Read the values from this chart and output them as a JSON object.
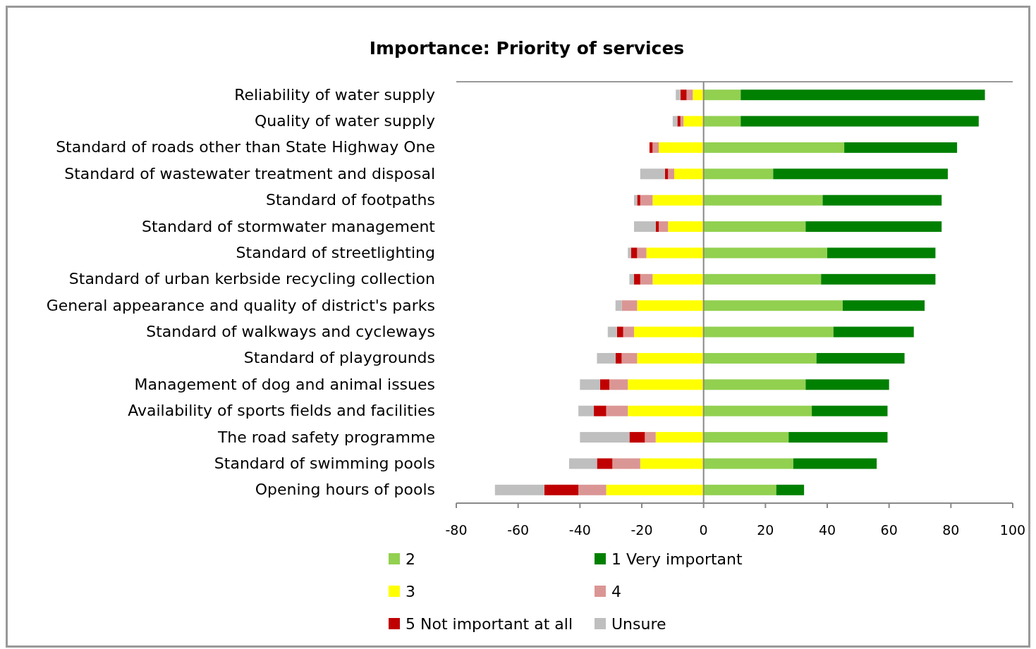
{
  "chart_data": {
    "type": "bar",
    "title": "Importance: Priority of services",
    "orientation": "horizontal",
    "stacked": true,
    "categories": [
      "Reliability of water supply",
      "Quality of water supply",
      "Standard of roads other than State Highway One",
      "Standard of wastewater treatment and disposal",
      "Standard of footpaths",
      "Standard of stormwater management",
      "Standard of streetlighting",
      "Standard of urban kerbside recycling collection",
      "General appearance and quality of district's parks",
      "Standard of walkways and cycleways",
      "Standard of playgrounds",
      "Management of dog and animal issues",
      "Availability of sports fields and facilities",
      "The road safety programme",
      "Standard of swimming pools",
      "Opening hours of pools"
    ],
    "series": [
      {
        "name": "2",
        "color": "#92d050",
        "values": [
          12,
          12,
          45.5,
          22.5,
          38.5,
          33,
          40,
          38,
          45,
          42,
          36.5,
          33,
          35,
          27.5,
          29,
          23.5
        ]
      },
      {
        "name": "1 Very important",
        "color": "#008000",
        "values": [
          79,
          77,
          36.5,
          56.5,
          38.5,
          44,
          35,
          37,
          26.5,
          26,
          28.5,
          27,
          24.5,
          32,
          27,
          9
        ]
      },
      {
        "name": "3",
        "color": "#ffff00",
        "values": [
          -3.5,
          -6.5,
          -14.5,
          -9.5,
          -16.5,
          -11.5,
          -18.5,
          -16.5,
          -21.5,
          -22.5,
          -21.5,
          -24.5,
          -24.5,
          -15.5,
          -20.5,
          -31.5
        ]
      },
      {
        "name": "4",
        "color": "#da9694",
        "values": [
          -2,
          -1,
          -2,
          -2,
          -4,
          -3,
          -3,
          -4,
          -5,
          -3.5,
          -5,
          -6,
          -7,
          -3.5,
          -9,
          -9
        ]
      },
      {
        "name": "5 Not important at all",
        "color": "#c00000",
        "values": [
          -2,
          -1,
          -1,
          -1,
          -1,
          -1,
          -2,
          -2,
          0,
          -2,
          -2,
          -3,
          -4,
          -5,
          -5,
          -11
        ]
      },
      {
        "name": "Unsure",
        "color": "#bfbfbf",
        "values": [
          -1.5,
          -1.5,
          0,
          -8,
          -1,
          -7,
          -1,
          -1.5,
          -2,
          -3,
          -6,
          -6.5,
          -5,
          -16,
          -9,
          -16
        ]
      }
    ],
    "xlim": [
      -80,
      100
    ],
    "xticks": [
      -80,
      -60,
      -40,
      -20,
      0,
      20,
      40,
      60,
      80,
      100
    ],
    "legend": "bottom"
  }
}
